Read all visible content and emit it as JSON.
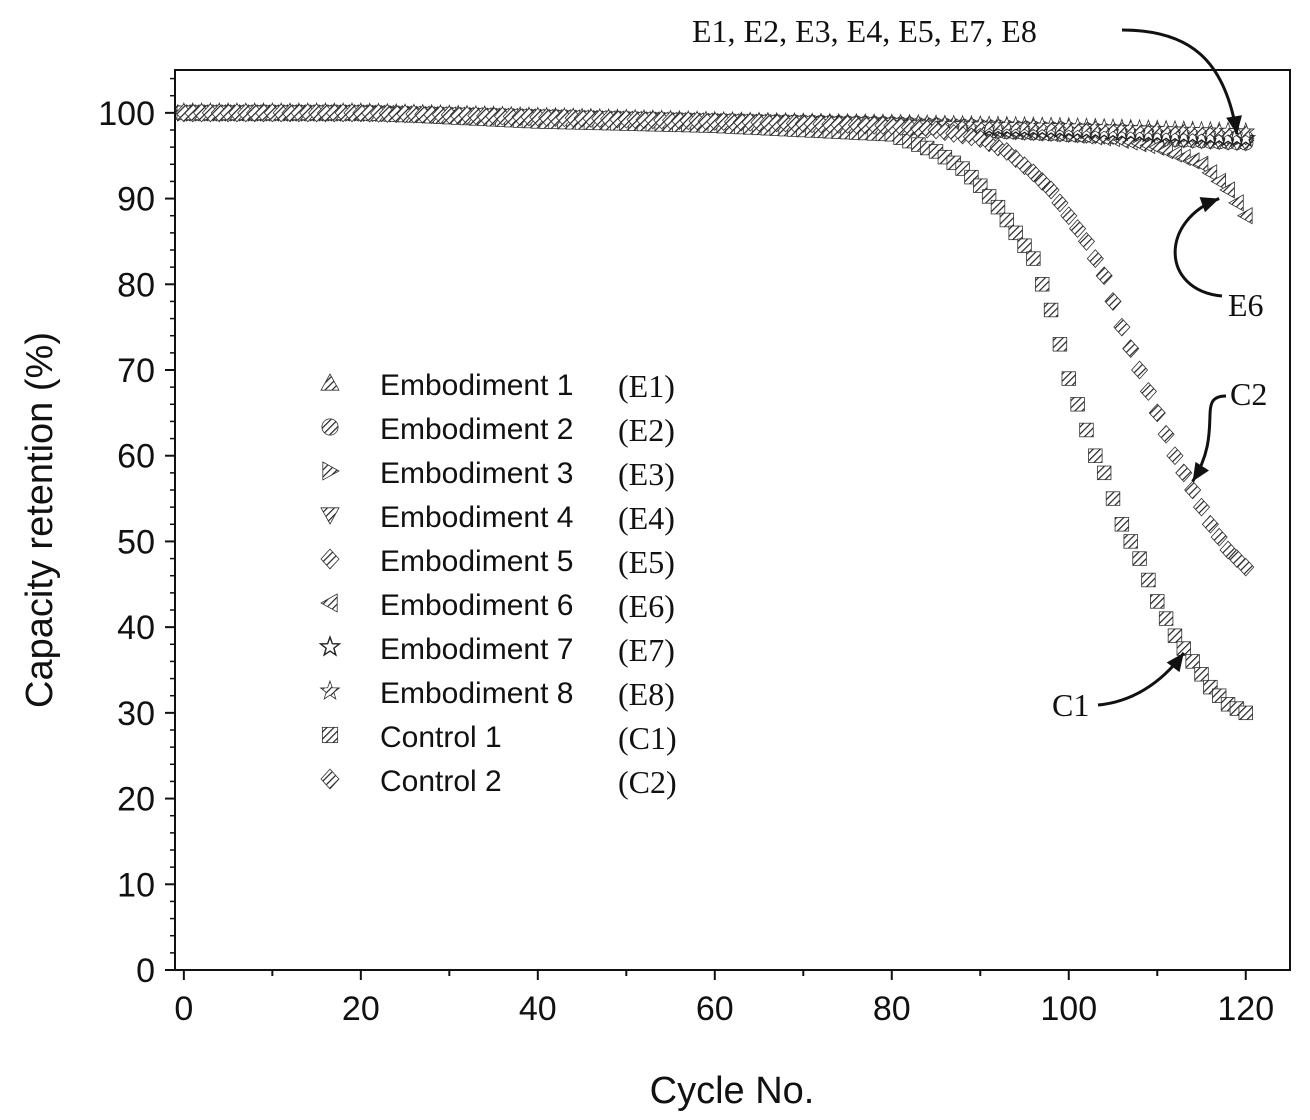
{
  "chart_data": {
    "type": "scatter",
    "title": "",
    "xlabel": "Cycle No.",
    "ylabel": "Capacity retention (%)",
    "xlim": [
      -1,
      125
    ],
    "ylim": [
      0,
      105
    ],
    "xticks": [
      0,
      20,
      40,
      60,
      80,
      100,
      120
    ],
    "yticks": [
      0,
      10,
      20,
      30,
      40,
      50,
      60,
      70,
      80,
      90,
      100
    ],
    "legend_position": "center-left",
    "series": [
      {
        "name": "Embodiment 1",
        "abbr": "(E1)",
        "marker": "triangle-up",
        "x": [
          0,
          20,
          40,
          60,
          80,
          90,
          100,
          110,
          120
        ],
        "y": [
          100,
          100,
          99.5,
          99,
          98.8,
          98.5,
          98.2,
          98,
          97.5
        ]
      },
      {
        "name": "Embodiment 2",
        "abbr": "(E2)",
        "marker": "circle",
        "x": [
          0,
          20,
          40,
          60,
          80,
          90,
          100,
          110,
          120
        ],
        "y": [
          100,
          100,
          99.5,
          99,
          98.5,
          98,
          97.5,
          97,
          96.5
        ]
      },
      {
        "name": "Embodiment 3",
        "abbr": "(E3)",
        "marker": "triangle-right",
        "x": [
          0,
          20,
          40,
          60,
          80,
          90,
          100,
          110,
          120
        ],
        "y": [
          100,
          100,
          99.5,
          99,
          98.6,
          98.3,
          98,
          97.6,
          97
        ]
      },
      {
        "name": "Embodiment 4",
        "abbr": "(E4)",
        "marker": "triangle-down",
        "x": [
          0,
          20,
          40,
          60,
          80,
          90,
          100,
          110,
          120
        ],
        "y": [
          100,
          100,
          99.5,
          99,
          98.4,
          98,
          97.5,
          97,
          96.5
        ]
      },
      {
        "name": "Embodiment 5",
        "abbr": "(E5)",
        "marker": "diamond",
        "x": [
          0,
          20,
          40,
          60,
          80,
          90,
          100,
          110,
          120
        ],
        "y": [
          100,
          100,
          99.5,
          99,
          98.7,
          98.4,
          98,
          97.8,
          97.3
        ]
      },
      {
        "name": "Embodiment 6",
        "abbr": "(E6)",
        "marker": "triangle-left",
        "x": [
          0,
          20,
          40,
          60,
          80,
          90,
          100,
          105,
          110,
          115,
          118,
          120
        ],
        "y": [
          100,
          100,
          99.5,
          99,
          98.5,
          98,
          97.5,
          97,
          96,
          94,
          91,
          88
        ]
      },
      {
        "name": "Embodiment 7",
        "abbr": "(E7)",
        "marker": "star-open",
        "x": [
          0,
          20,
          40,
          60,
          80,
          90,
          100,
          110,
          120
        ],
        "y": [
          100,
          100,
          99.5,
          99,
          98.6,
          98.3,
          98,
          97.5,
          97
        ]
      },
      {
        "name": "Embodiment 8",
        "abbr": "(E8)",
        "marker": "star",
        "x": [
          0,
          20,
          40,
          60,
          80,
          90,
          100,
          110,
          120
        ],
        "y": [
          100,
          100,
          99.5,
          99,
          98.8,
          98.6,
          98.4,
          98.1,
          97.8
        ]
      },
      {
        "name": "Control 1",
        "abbr": "(C1)",
        "marker": "square",
        "x": [
          0,
          20,
          40,
          60,
          80,
          85,
          88,
          90,
          92,
          94,
          96,
          97,
          98,
          99,
          100,
          101,
          102,
          103,
          104,
          105,
          106,
          108,
          110,
          112,
          114,
          116,
          118,
          120
        ],
        "y": [
          100,
          100,
          99,
          98.5,
          97.5,
          95.5,
          93.5,
          91.5,
          89,
          86,
          83,
          80,
          77,
          73,
          69,
          66,
          63,
          60,
          58,
          55,
          52,
          48,
          43,
          39,
          36,
          33,
          31,
          30
        ]
      },
      {
        "name": "Control 2",
        "abbr": "(C2)",
        "marker": "diamond-hatched",
        "x": [
          0,
          20,
          40,
          60,
          80,
          85,
          90,
          93,
          96,
          98,
          100,
          102,
          104,
          106,
          108,
          110,
          112,
          114,
          116,
          118,
          120
        ],
        "y": [
          100,
          100,
          99.5,
          99,
          98.5,
          98,
          97,
          95.5,
          93,
          91,
          88,
          85,
          81,
          75,
          70,
          65,
          60,
          56,
          52,
          49,
          47
        ]
      }
    ],
    "annotations": [
      {
        "text": "E1, E2, E3, E4, E5, E7, E8",
        "target_x": 119,
        "target_y": 97.5
      },
      {
        "text": "E6",
        "target_x": 117,
        "target_y": 90
      },
      {
        "text": "C2",
        "target_x": 114,
        "target_y": 57
      },
      {
        "text": "C1",
        "target_x": 113,
        "target_y": 37
      }
    ]
  }
}
